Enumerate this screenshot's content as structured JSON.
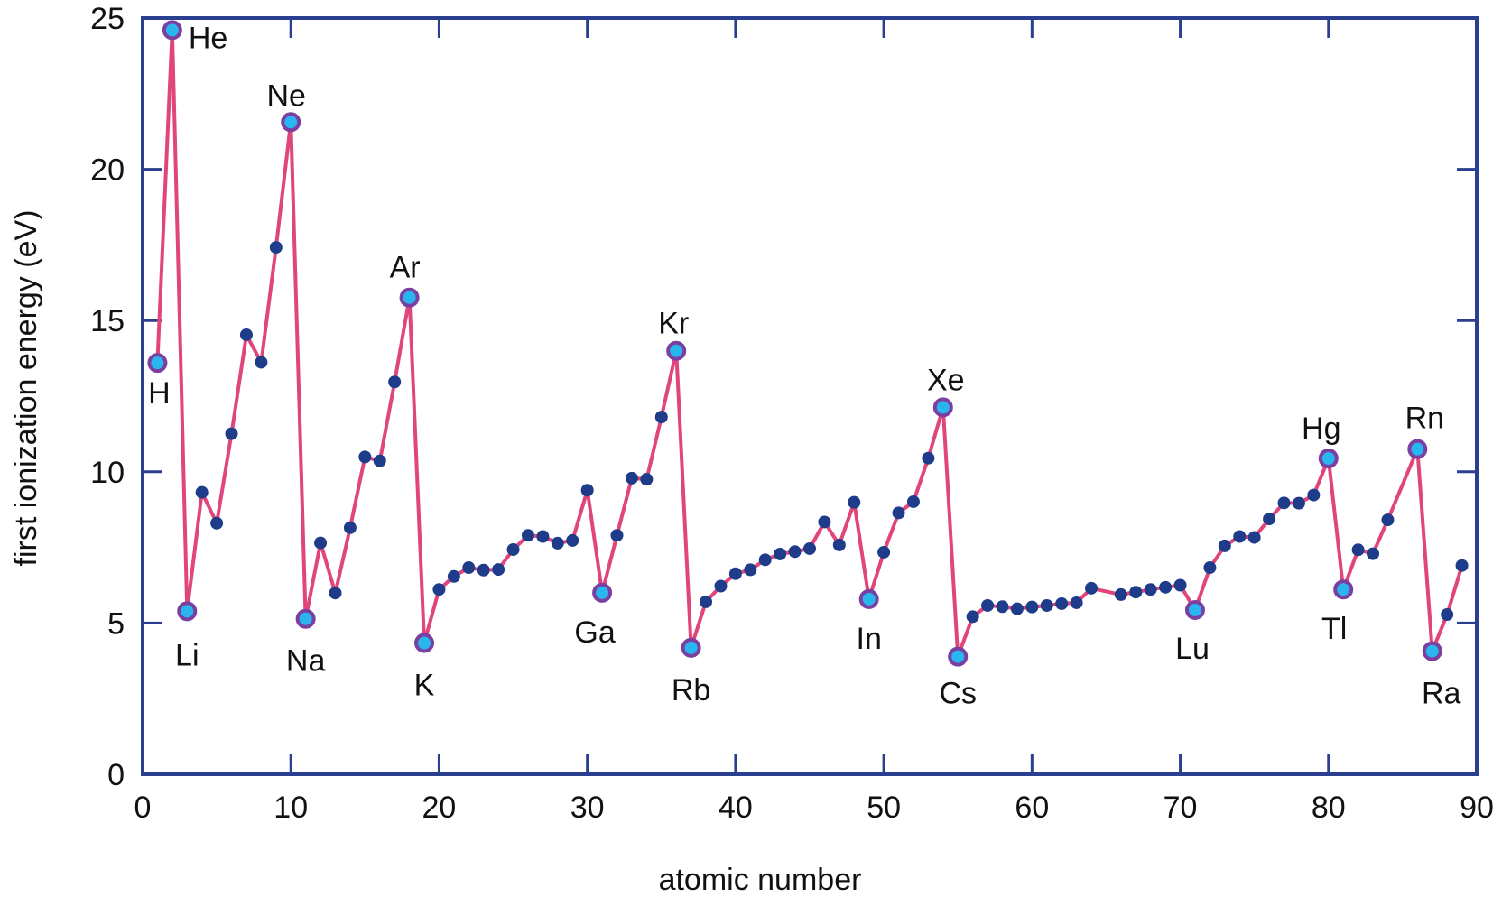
{
  "chart_data": {
    "type": "line",
    "xlabel": "atomic number",
    "ylabel": "first ionization energy (eV)",
    "xlim": [
      0,
      90
    ],
    "ylim": [
      0,
      25
    ],
    "x_ticks": [
      0,
      10,
      20,
      30,
      40,
      50,
      60,
      70,
      80,
      90
    ],
    "y_ticks": [
      0,
      5,
      10,
      15,
      20,
      25
    ],
    "grid": false,
    "colors": {
      "frame": "#2a3f8f",
      "line": "#e0457b",
      "point": "#1f3c8a",
      "highlight_fill": "#29b6ee",
      "highlight_ring": "#7a3fa0"
    },
    "series": [
      {
        "x": [
          1,
          2,
          3,
          4,
          5,
          6,
          7,
          8,
          9,
          10,
          11,
          12,
          13,
          14,
          15,
          16,
          17,
          18,
          19,
          20,
          21,
          22,
          23,
          24,
          25,
          26,
          27,
          28,
          29,
          30,
          31,
          32,
          33,
          34,
          35,
          36,
          37,
          38,
          39,
          40,
          41,
          42,
          43,
          44,
          45,
          46,
          47,
          48,
          49,
          50,
          51,
          52,
          53,
          54,
          55,
          56,
          57,
          58,
          59,
          60,
          61,
          62,
          63,
          64,
          66,
          67,
          68,
          69,
          70,
          71,
          72,
          73,
          74,
          75,
          76,
          77,
          78,
          79,
          80,
          81,
          82,
          83,
          84,
          86,
          87,
          88,
          89
        ],
        "y": [
          13.6,
          24.6,
          5.39,
          9.32,
          8.3,
          11.26,
          14.53,
          13.62,
          17.42,
          21.56,
          5.14,
          7.65,
          5.99,
          8.15,
          10.49,
          10.36,
          12.97,
          15.76,
          4.34,
          6.11,
          6.54,
          6.83,
          6.75,
          6.77,
          7.43,
          7.9,
          7.86,
          7.64,
          7.73,
          9.39,
          6.0,
          7.9,
          9.79,
          9.75,
          11.81,
          14.0,
          4.18,
          5.7,
          6.22,
          6.63,
          6.76,
          7.09,
          7.28,
          7.36,
          7.46,
          8.34,
          7.58,
          8.99,
          5.79,
          7.34,
          8.64,
          9.01,
          10.45,
          12.13,
          3.89,
          5.21,
          5.58,
          5.54,
          5.47,
          5.53,
          5.58,
          5.64,
          5.67,
          6.15,
          5.94,
          6.02,
          6.11,
          6.18,
          6.25,
          5.43,
          6.83,
          7.55,
          7.86,
          7.83,
          8.44,
          8.97,
          8.96,
          9.23,
          10.44,
          6.11,
          7.42,
          7.29,
          8.41,
          10.75,
          4.07,
          5.28,
          6.9
        ]
      }
    ],
    "highlighted": [
      {
        "symbol": "H",
        "x": 1,
        "y": 13.6
      },
      {
        "symbol": "He",
        "x": 2,
        "y": 24.6
      },
      {
        "symbol": "Li",
        "x": 3,
        "y": 5.39
      },
      {
        "symbol": "Ne",
        "x": 10,
        "y": 21.56
      },
      {
        "symbol": "Na",
        "x": 11,
        "y": 5.14
      },
      {
        "symbol": "Ar",
        "x": 18,
        "y": 15.76
      },
      {
        "symbol": "K",
        "x": 19,
        "y": 4.34
      },
      {
        "symbol": "Ga",
        "x": 31,
        "y": 6.0
      },
      {
        "symbol": "Kr",
        "x": 36,
        "y": 14.0
      },
      {
        "symbol": "Rb",
        "x": 37,
        "y": 4.18
      },
      {
        "symbol": "In",
        "x": 49,
        "y": 5.79
      },
      {
        "symbol": "Xe",
        "x": 54,
        "y": 12.13
      },
      {
        "symbol": "Cs",
        "x": 55,
        "y": 3.89
      },
      {
        "symbol": "Lu",
        "x": 71,
        "y": 5.43
      },
      {
        "symbol": "Hg",
        "x": 80,
        "y": 10.44
      },
      {
        "symbol": "Tl",
        "x": 81,
        "y": 6.11
      },
      {
        "symbol": "Rn",
        "x": 86,
        "y": 10.75
      },
      {
        "symbol": "Ra",
        "x": 87,
        "y": 4.07
      }
    ]
  }
}
